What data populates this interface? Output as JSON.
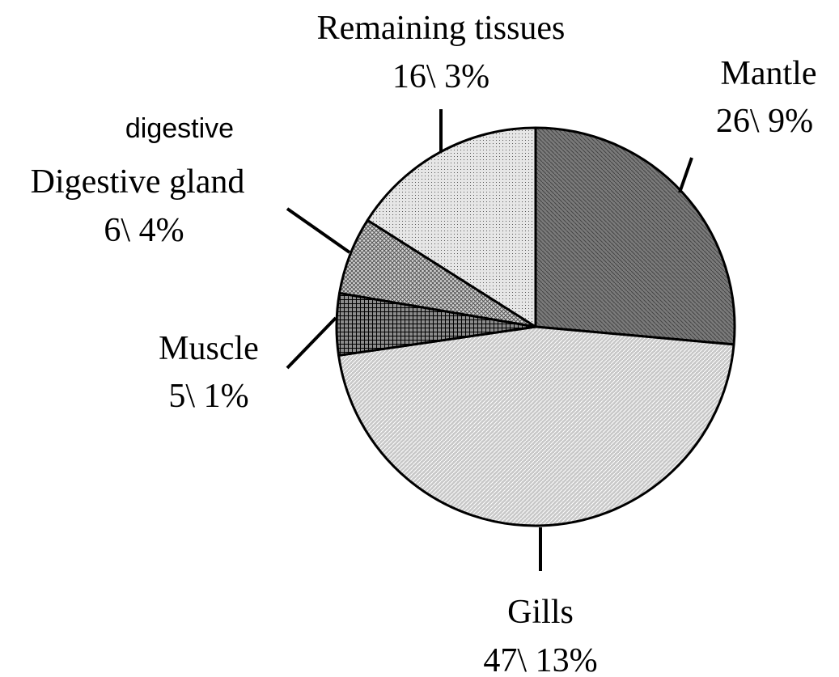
{
  "chart_data": {
    "type": "pie",
    "categories": [
      "Mantle",
      "Gills",
      "Muscle",
      "Digestive gland",
      "Remaining tissues"
    ],
    "values": [
      26.9,
      47.13,
      5.1,
      6.4,
      16.3
    ],
    "value_labels": [
      "26\\ 9%",
      "47\\ 13%",
      "5\\ 1%",
      "6\\ 4%",
      "16\\ 3%"
    ],
    "colors": [
      "#7a7a7a",
      "#c8c8c8",
      "#8c8c8c",
      "#d6d6d6",
      "#e6e6e6"
    ],
    "annotation": "digestive"
  }
}
